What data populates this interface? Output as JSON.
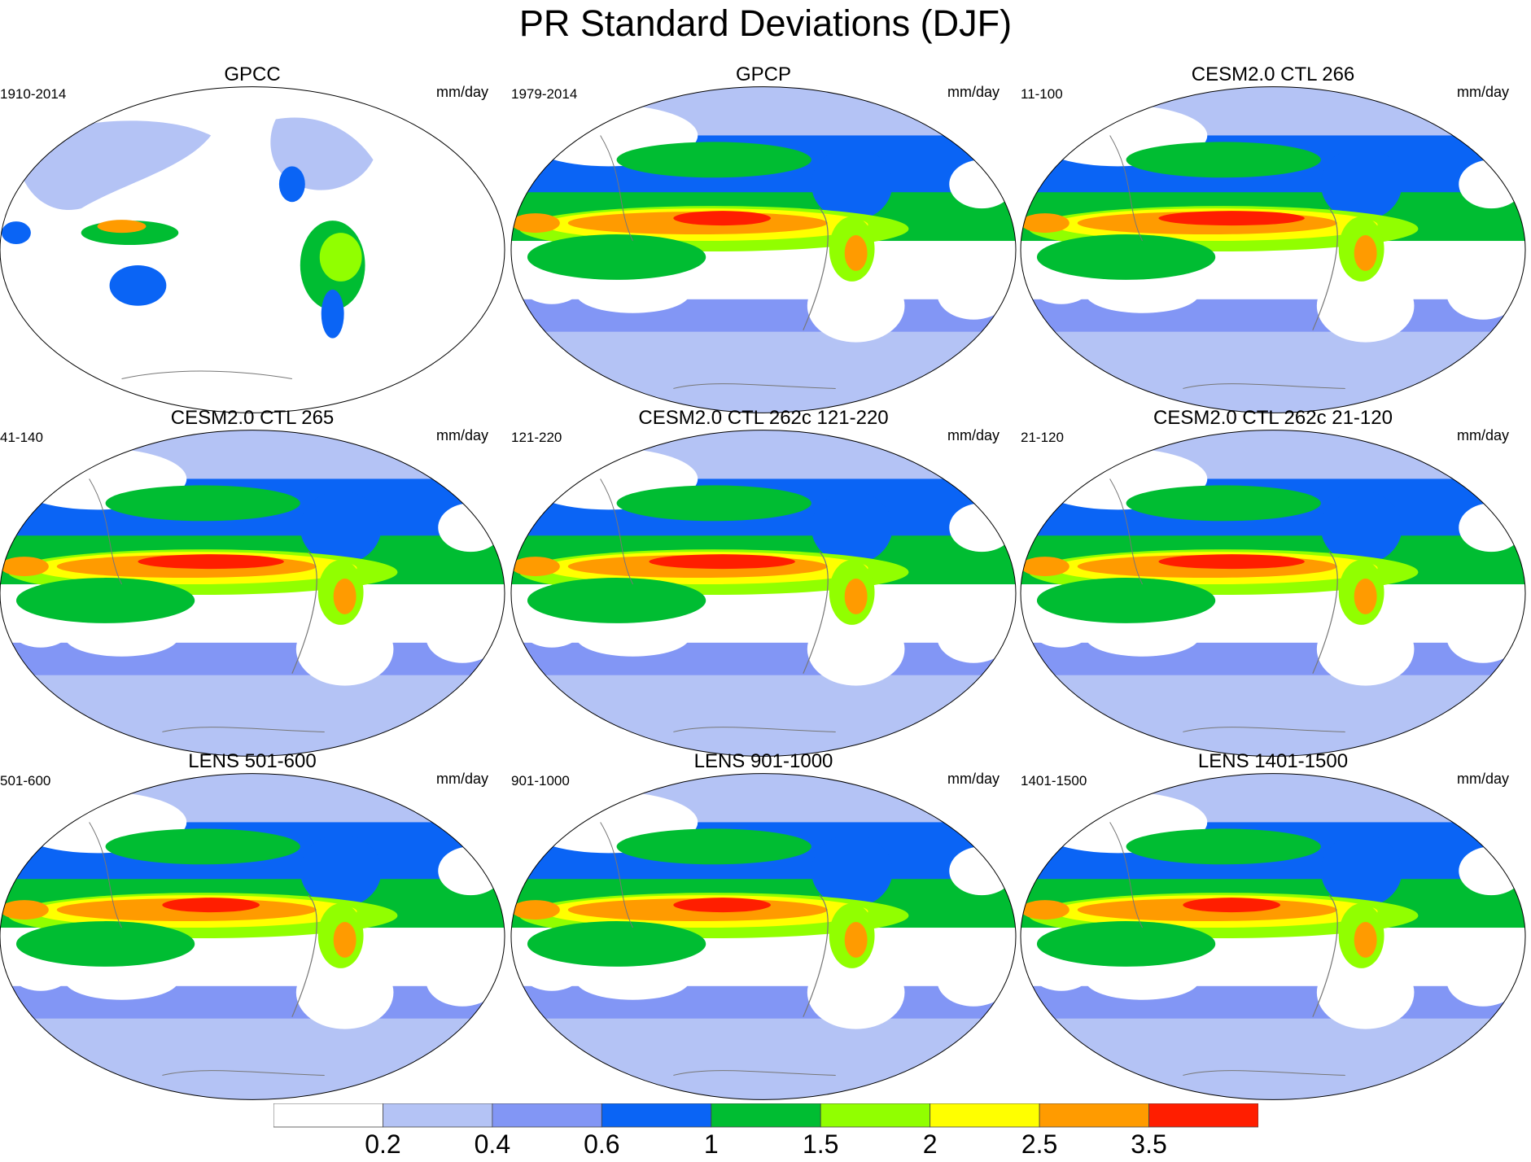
{
  "title": "PR Standard Deviations (DJF)",
  "panels": [
    {
      "title": "GPCC",
      "period": "1910-2014",
      "units": "mm/day",
      "variant": "obs_land"
    },
    {
      "title": "GPCP",
      "period": "1979-2014",
      "units": "mm/day",
      "variant": "obs"
    },
    {
      "title": "CESM2.0 CTL 266",
      "period": "11-100",
      "units": "mm/day",
      "variant": "model"
    },
    {
      "title": "CESM2.0 CTL 265",
      "period": "41-140",
      "units": "mm/day",
      "variant": "model"
    },
    {
      "title": "CESM2.0 CTL 262c 121-220",
      "period": "121-220",
      "units": "mm/day",
      "variant": "model"
    },
    {
      "title": "CESM2.0 CTL 262c 21-120",
      "period": "21-120",
      "units": "mm/day",
      "variant": "model"
    },
    {
      "title": "LENS 501-600",
      "period": "501-600",
      "units": "mm/day",
      "variant": "lens"
    },
    {
      "title": "LENS 901-1000",
      "period": "901-1000",
      "units": "mm/day",
      "variant": "lens"
    },
    {
      "title": "LENS 1401-1500",
      "period": "1401-1500",
      "units": "mm/day",
      "variant": "lens"
    }
  ],
  "colorbar": {
    "colors": [
      "#ffffff",
      "#b4c3f5",
      "#8296f5",
      "#0a64f5",
      "#00bd32",
      "#91ff00",
      "#ffff00",
      "#ff9b00",
      "#ff1e00"
    ],
    "labels": [
      "0.2",
      "0.4",
      "0.6",
      "1",
      "1.5",
      "2",
      "2.5",
      "3.5"
    ]
  }
}
